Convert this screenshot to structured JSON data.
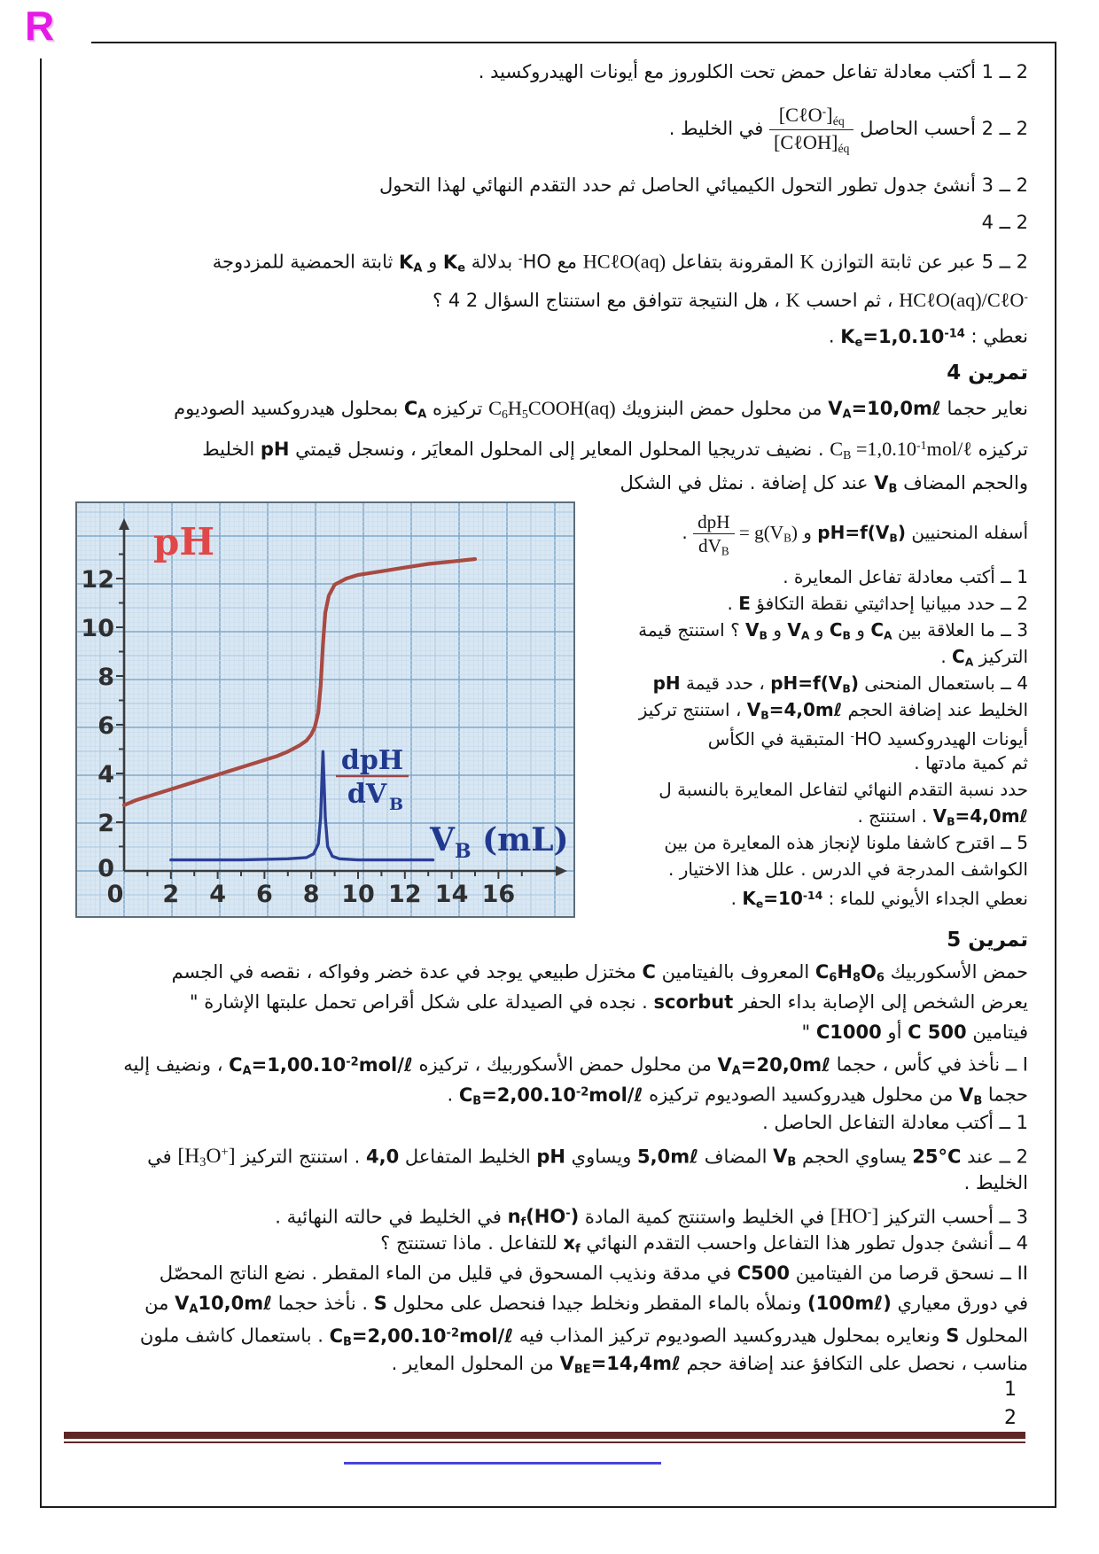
{
  "page": {
    "logo": "R",
    "page_num_1": "1",
    "page_num_2": "2"
  },
  "sec2": {
    "lines": [
      "2 ــ 1 أكتب معادلة تفاعل حمض تحت الكلوروز مع أيونات الهيدروكسيد .",
      "2 ــ 2 أحسب الحاصل <span class='frac sf'><span class='fn'>[CℓO<sup>-</sup>]<sub>éq</sub></span><span class='fd'>[CℓOH]<sub>éq</sub></span></span> في الخليط .",
      "2 ــ 3  أنشئ جدول تطور التحول الكيميائي الحاصل ثم حدد التقدم النهائي لهذا التحول",
      "2 ــ 4",
      "2 ــ 5 عبر عن ثابتة التوازن <span class='ltr sf'>K</span> المقرونة بتفاعل <span class='ltr sf'>HCℓO(aq)</span> مع HO<sup>-</sup> بدلالة <span class='ltr'>K<sub>e</sub></span> و <span class='ltr'>K<sub>A</sub></span> ثابتة الحمضية للمزدوجة",
      "<span class='ltr sf'>HCℓO(aq)/CℓO<sup>-</sup></span> ، ثم احسب <span class='ltr sf'>K</span> ، هل النتيجة تتوافق مع استنتاج السؤال 2  4 ؟",
      "نعطي : <span class='ltr'>K<sub>e</sub>=1,0.10<sup>-14</sup></span> ."
    ]
  },
  "ex4": {
    "title": "تمرين 4",
    "intro": [
      "نعاير حجما <span class='ltr'>V<sub>A</sub>=10,0mℓ</span> من محلول حمض البنزويك <span class='ltr sf'>C<sub>6</sub>H<sub>5</sub>COOH(aq)</span> تركيزه <span class='ltr'>C<sub>A</sub></span> بمحلول هيدروكسيد الصوديوم",
      "تركيزه <span class='ltr sf'>C<sub>B</sub> =1,0.10<sup>-1</sup>mol/ℓ</span> . نضيف تدريجيا المحلول المعاير إلى المحلول المعايَر ، ونسجل قيمتي <span class='ltr'>pH</span> الخليط",
      "والحجم المضاف <span class='ltr'>V<sub>B</sub></span> عند كل إضافة . نمثل في الشكل"
    ],
    "right_col": [
      "أسفله المنحنيين <span class='ltr'>pH=f(V<sub>B</sub>)</span> و <span class='ltr sf'><span class='frac'><span class='fn'>dpH</span><span class='fd'>dV<sub>B</sub></span></span> = g(V<sub>B</sub>)</span> .",
      "1 ــ أكتب معادلة تفاعل المعايرة .",
      "2 ــ حدد مبيانيا إحداثيتي نقطة التكافؤ <span class='ltr'>E</span> .",
      "3 ــ ما العلاقة بين <span class='ltr'>C<sub>A</sub></span> و <span class='ltr'>C<sub>B</sub></span> و <span class='ltr'>V<sub>A</sub></span> و <span class='ltr'>V<sub>B</sub></span> ؟ استنتج قيمة",
      "التركيز <span class='ltr'>C<sub>A</sub></span> .",
      "4 ــ باستعمال المنحنى <span class='ltr'>pH=f(V<sub>B</sub>)</span> ، حدد قيمة <span class='ltr'>pH</span>",
      "الخليط عند إضافة الحجم <span class='ltr'>V<sub>B</sub>=4,0mℓ</span> ، استنتج تركيز",
      "أيونات الهيدروكسيد HO<sup>-</sup> المتبقية في الكأس",
      "ثم كمية مادتها .",
      "حدد نسبة التقدم النهائي لتفاعل المعايرة بالنسبة ل",
      "<span class='ltr'>V<sub>B</sub>=4,0mℓ</span> . استنتج .",
      "5 ــ اقترح كاشفا ملونا لإنجاز هذه المعايرة من بين",
      "الكواشف المدرجة في الدرس . علل هذا الاختيار .",
      "نعطي الجداء الأيوني للماء : <span class='ltr'>K<sub>e</sub>=10<sup>-14</sup></span> ."
    ]
  },
  "ex5": {
    "title": "تمرين 5",
    "lines": [
      "حمض الأسكوربيك <span class='ltr'>C<sub>6</sub>H<sub>8</sub>O<sub>6</sub></span> المعروف بالفيتامين <span class='ltr'>C</span> مختزل طبيعي يوجد في عدة خضر وفواكه ، نقصه في الجسم",
      "يعرض الشخص إلى الإصابة بداء الحفر <span class='ltr'>scorbut</span> . نجده في الصيدلة على شكل أقراص تحمل علبتها الإشارة \"",
      "فيتامين <span class='ltr'>C 500</span> أو <span class='ltr'>C1000</span>  \"",
      "I ــ نأخذ في كأس ، حجما <span class='ltr'>V<sub>A</sub>=20,0mℓ</span> من محلول حمض الأسكوربيك ، تركيزه <span class='ltr'>C<sub>A</sub>=1,00.10<sup>-2</sup>mol/ℓ</span> ، ونضيف إليه",
      "حجما <span class='ltr'>V<sub>B</sub></span> من محلول هيدروكسيد الصوديوم تركيزه <span class='ltr'>C<sub>B</sub>=2,00.10<sup>-2</sup>mol/ℓ</span> .",
      "1 ــ أكتب معادلة التفاعل الحاصل .",
      "2 ــ عند <span class='ltr'>25°C</span> يساوي الحجم <span class='ltr'>V<sub>B</sub></span> المضاف <span class='ltr'>5,0mℓ</span> ويساوي <span class='ltr'>pH</span> الخليط المتفاعل <span class='ltr'>4,0</span> . استنتج التركيز <span class='ltr sf brkt'>[H<sub>3</sub>O<sup>+</sup>]</span> في",
      "الخليط .",
      "3 ــ أحسب التركيز <span class='ltr sf brkt'>[HO<sup>-</sup>]</span> في الخليط واستنتج كمية المادة <span class='ltr'>n<sub>f</sub>(HO<sup>-</sup>)</span> في الخليط في حالته النهائية .",
      "4 ــ أنشئ جدول تطور هذا التفاعل واحسب التقدم النهائي <span class='ltr'>x<sub>f</sub></span> للتفاعل . ماذا تستنتج ؟",
      "II ــ نسحق قرصا من الفيتامين <span class='ltr'>C500</span> في مدقة ونذيب المسحوق في قليل من الماء المقطر . نضع الناتج المحصّل",
      "في دورق معياري <span class='ltr'>(100mℓ)</span> ونملأه بالماء المقطر ونخلط جيدا فنحصل على محلول <span class='ltr'>S</span> . نأخذ حجما <span class='ltr'>V<sub>A</sub>10,0mℓ</span> من",
      "المحلول <span class='ltr'>S</span> ونعايره بمحلول هيدروكسيد الصوديوم تركيز المذاب فيه <span class='ltr'>C<sub>B</sub>=2,00.10<sup>-2</sup>mol/ℓ</span> . باستعمال كاشف ملون",
      "مناسب ، نحصل على التكافؤ عند إضافة حجم <span class='ltr'>V<sub>BE</sub>=14,4mℓ</span> من المحلول المعاير ."
    ]
  },
  "chart_data": {
    "type": "line",
    "title": "",
    "xlabel": "VB (mL)",
    "ylabel": "pH",
    "xlim": [
      0,
      17.5
    ],
    "ylim": [
      0,
      13.5
    ],
    "x_ticks": [
      0,
      2,
      4,
      6,
      8,
      10,
      12,
      14,
      16
    ],
    "y_ticks": [
      0,
      2,
      4,
      6,
      8,
      10,
      12
    ],
    "grid": "millimeter-paper",
    "equivalence_volume_mL": 8.5,
    "series": [
      {
        "name": "pH=f(VB)",
        "color": "#a84a42",
        "x": [
          0,
          0.5,
          1,
          2,
          3,
          4,
          5,
          6,
          6.5,
          7,
          7.5,
          7.8,
          8,
          8.15,
          8.3,
          8.4,
          8.5,
          8.6,
          8.75,
          9,
          9.5,
          10,
          11,
          12,
          13,
          14,
          15
        ],
        "y": [
          2.7,
          2.9,
          3.05,
          3.35,
          3.65,
          3.95,
          4.25,
          4.55,
          4.7,
          4.9,
          5.15,
          5.35,
          5.6,
          5.9,
          6.5,
          7.6,
          9.3,
          10.6,
          11.3,
          11.75,
          12.0,
          12.15,
          12.3,
          12.45,
          12.6,
          12.7,
          12.8
        ]
      },
      {
        "name": "dpH/dVB=g(VB)",
        "color": "#2b3f96",
        "x": [
          2,
          5,
          7,
          7.8,
          8.1,
          8.3,
          8.4,
          8.45,
          8.5,
          8.55,
          8.6,
          8.7,
          8.9,
          9.2,
          10,
          11,
          12,
          13.2
        ],
        "y": [
          0.45,
          0.45,
          0.5,
          0.55,
          0.7,
          1.1,
          2.2,
          3.6,
          4.9,
          3.6,
          2.2,
          1.0,
          0.6,
          0.5,
          0.45,
          0.45,
          0.45,
          0.45
        ]
      }
    ],
    "labels": {
      "y_axis": "pH",
      "x_axis_main": "V",
      "x_axis_sub": "B",
      "x_axis_unit": " (mL)",
      "deriv_num": "dpH",
      "deriv_den_main": "dV",
      "deriv_den_sub": "B"
    }
  }
}
